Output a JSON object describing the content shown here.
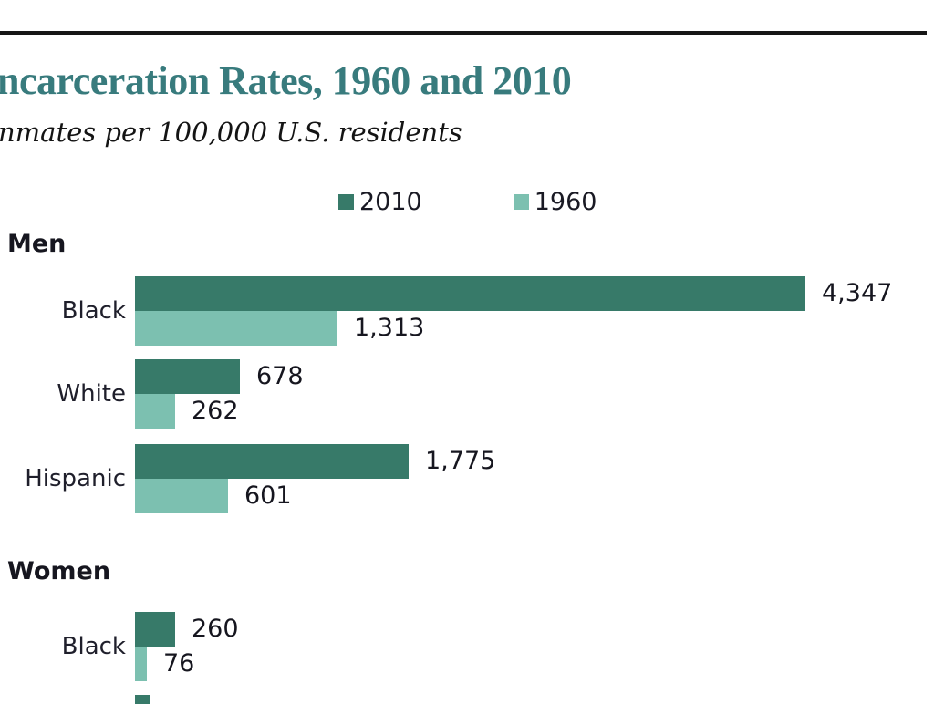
{
  "chart_data": {
    "type": "bar",
    "orientation": "horizontal",
    "title": "ncarceration Rates, 1960 and 2010",
    "subtitle": "nmates per 100,000 U.S. residents",
    "legend": [
      "2010",
      "1960"
    ],
    "legend_position": "top-center",
    "grid": false,
    "xlim": [
      0,
      4700
    ],
    "colors": {
      "series_2010": "#377a69",
      "series_1960": "#7cc0b0",
      "title": "#387b7d",
      "text": "#1a1a24",
      "rule": "#161616"
    },
    "groups": [
      {
        "label": "Men",
        "rows": [
          {
            "category": "Black",
            "values": {
              "2010": 4347,
              "1960": 1313
            },
            "labels": {
              "2010": "4,347",
              "1960": "1,313"
            }
          },
          {
            "category": "White",
            "values": {
              "2010": 678,
              "1960": 262
            },
            "labels": {
              "2010": "678",
              "1960": "262"
            }
          },
          {
            "category": "Hispanic",
            "values": {
              "2010": 1775,
              "1960": 601
            },
            "labels": {
              "2010": "1,775",
              "1960": "601"
            }
          }
        ]
      },
      {
        "label": "Women",
        "rows": [
          {
            "category": "Black",
            "values": {
              "2010": 260,
              "1960": 76
            },
            "labels": {
              "2010": "260",
              "1960": "76"
            }
          }
        ]
      }
    ],
    "clipped_next_bar": {
      "visible": true,
      "series": "2010"
    }
  }
}
